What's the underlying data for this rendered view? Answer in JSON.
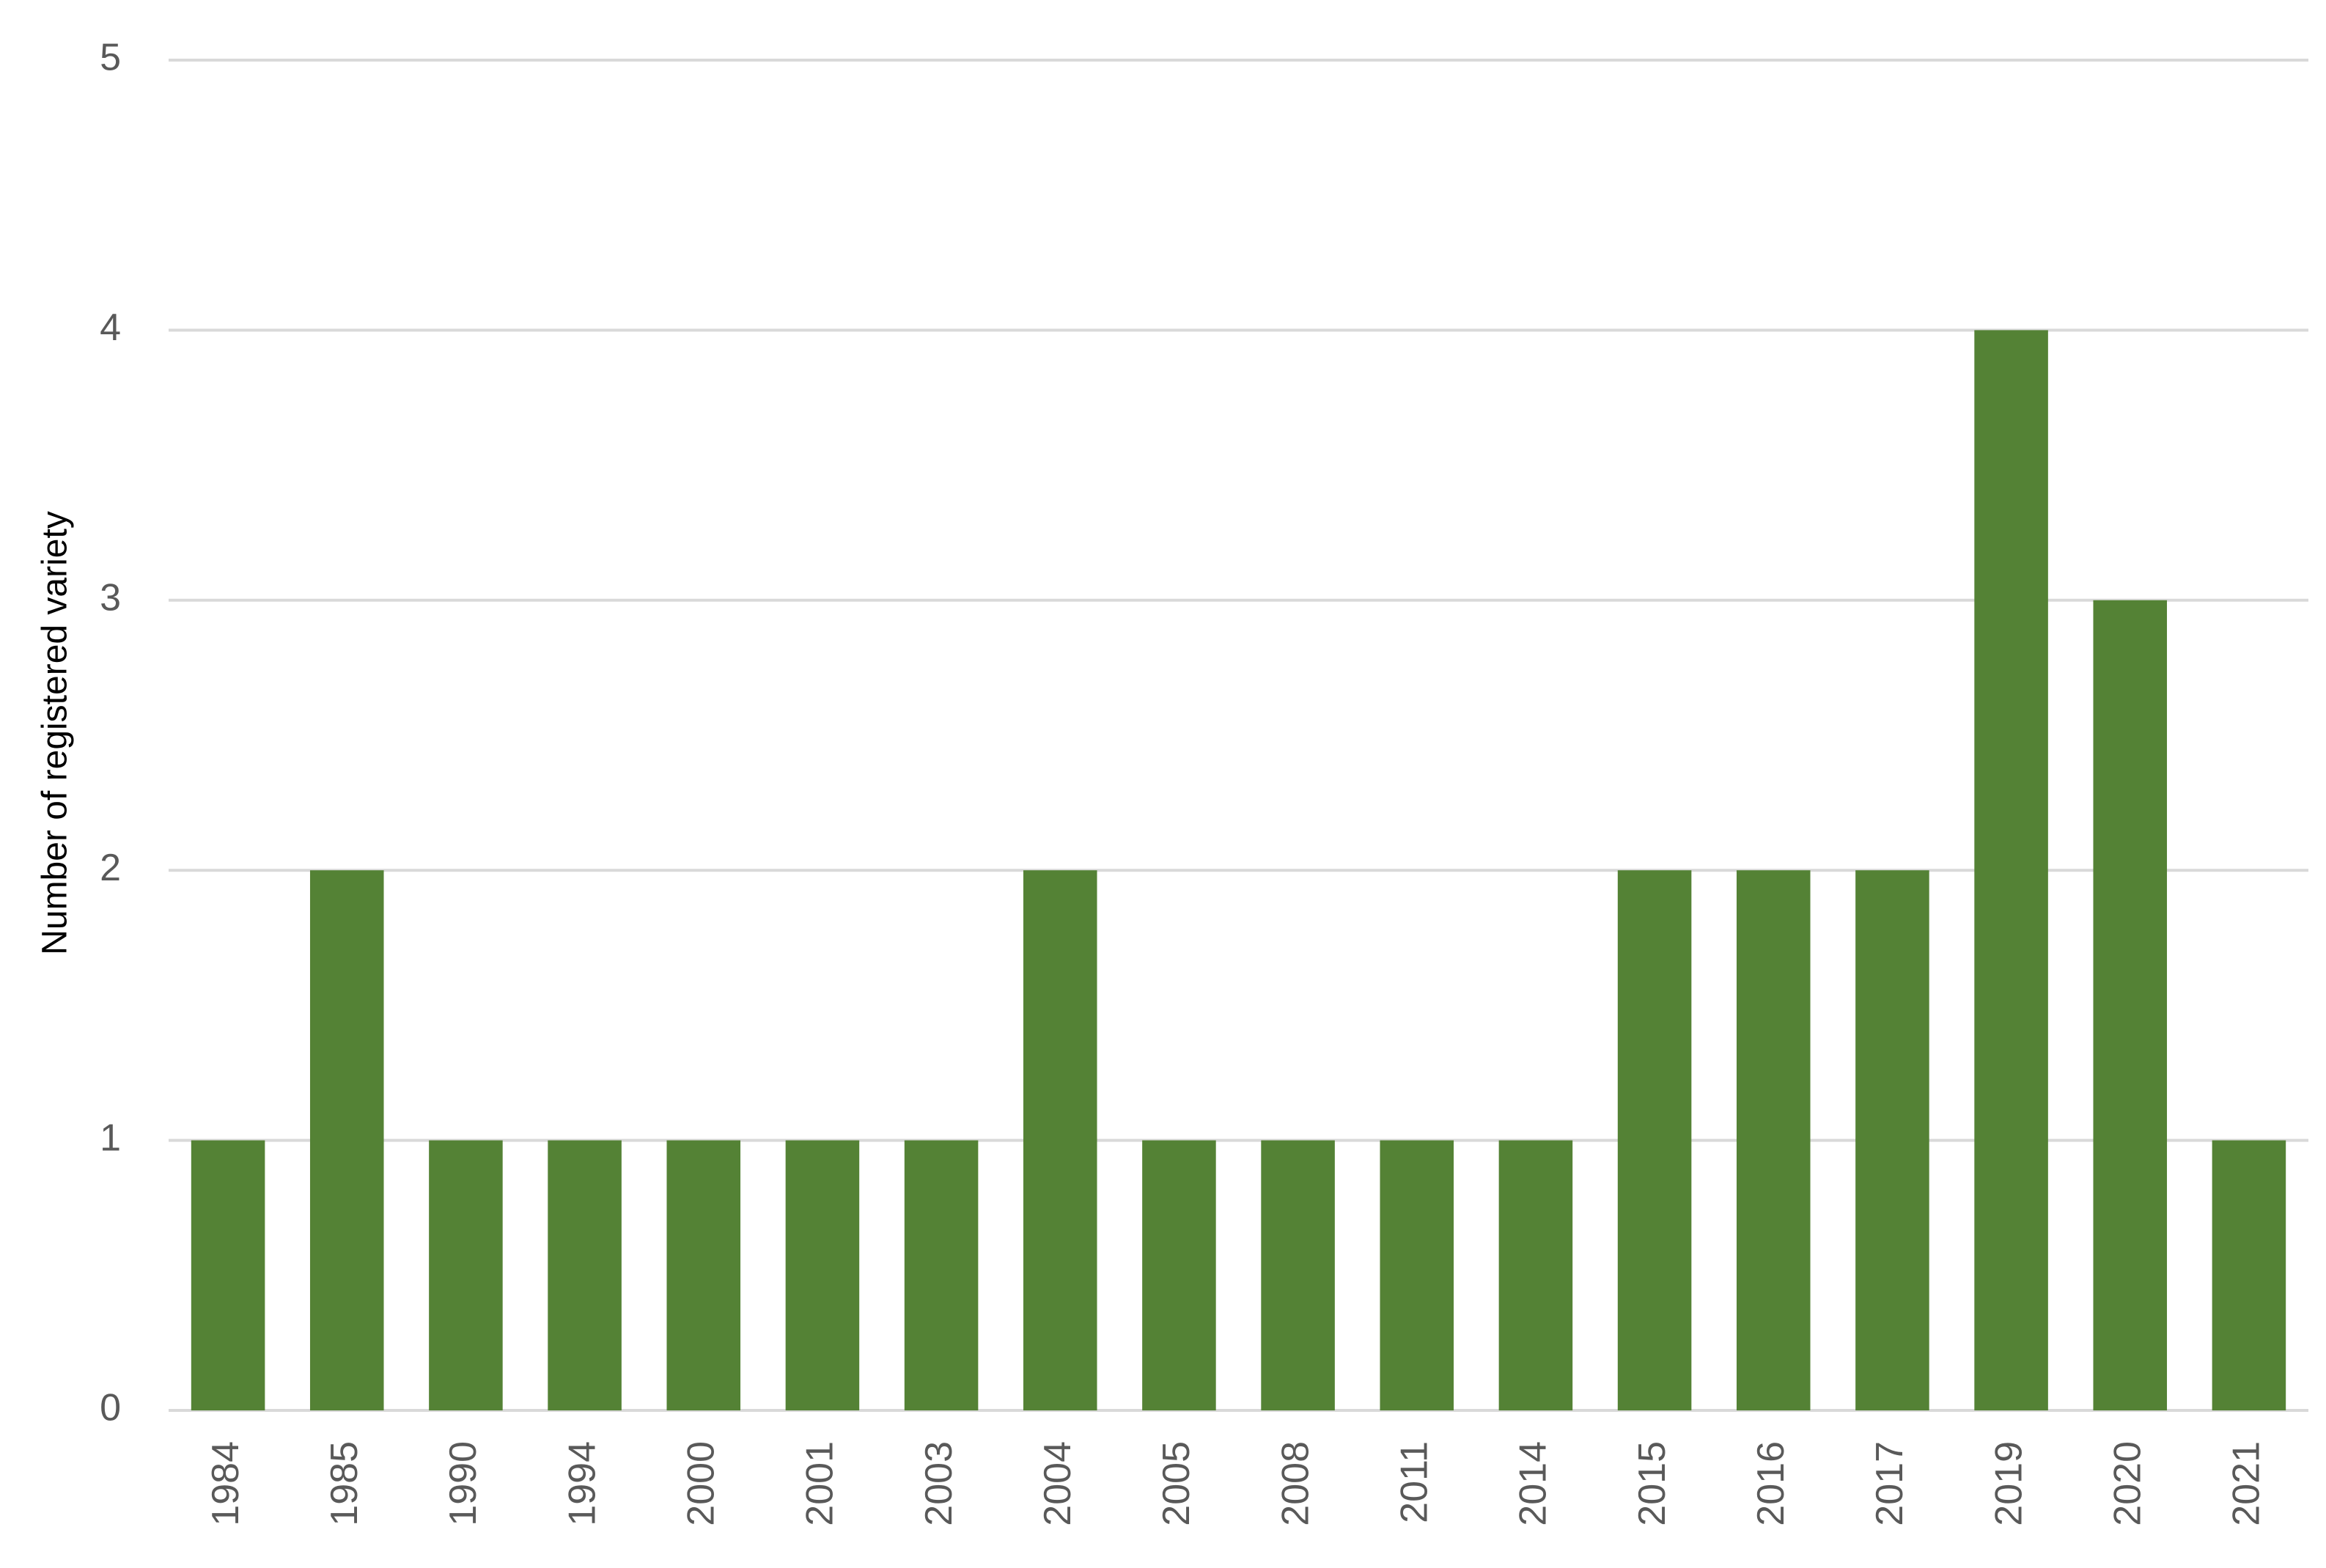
{
  "chart_data": {
    "type": "bar",
    "y_label": "Number of registered variety",
    "categories": [
      "1984",
      "1985",
      "1990",
      "1994",
      "2000",
      "2001",
      "2003",
      "2004",
      "2005",
      "2008",
      "2011",
      "2014",
      "2015",
      "2016",
      "2017",
      "2019",
      "2020",
      "2021"
    ],
    "values": [
      1,
      2,
      1,
      1,
      1,
      1,
      1,
      2,
      1,
      1,
      1,
      1,
      2,
      2,
      2,
      4,
      3,
      1
    ],
    "color": "#548235",
    "ylim": [
      0,
      5
    ],
    "yticks": [
      0,
      1,
      2,
      3,
      4,
      5
    ],
    "grid": true
  }
}
